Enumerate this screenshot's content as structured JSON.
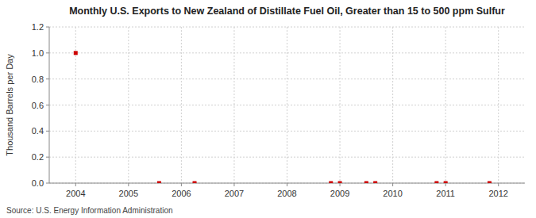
{
  "chart_data": {
    "type": "scatter",
    "title": "Monthly U.S. Exports to New Zealand of Distillate Fuel Oil, Greater than 15 to 500 ppm Sulfur",
    "ylabel": "Thousand Barrels per Day",
    "source": "Source: U.S. Energy Information Administration",
    "x": [
      2004.0,
      2005.58,
      2006.25,
      2008.83,
      2009.0,
      2009.5,
      2009.67,
      2010.83,
      2011.0,
      2011.83
    ],
    "values": [
      1.0,
      0.0,
      0.0,
      0.0,
      0.0,
      0.0,
      0.0,
      0.0,
      0.0,
      0.0
    ],
    "color": "#cc0000",
    "marker": "square",
    "xlim": [
      2003.5,
      2012.5
    ],
    "xticks": [
      2004,
      2005,
      2006,
      2007,
      2008,
      2009,
      2010,
      2011,
      2012
    ],
    "ylim": [
      0.0,
      1.2
    ],
    "yticks": [
      {
        "value": 0.0,
        "label": "0.0"
      },
      0.2,
      0.4,
      0.6,
      0.8,
      {
        "value": 1.0,
        "label": "1.0"
      },
      1.2
    ],
    "grid": true
  }
}
